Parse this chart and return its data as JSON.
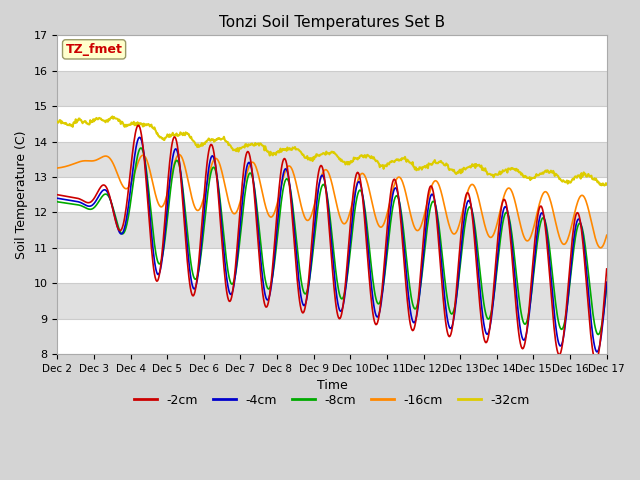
{
  "title": "Tonzi Soil Temperatures Set B",
  "xlabel": "Time",
  "ylabel": "Soil Temperature (C)",
  "ylim": [
    8.0,
    17.0
  ],
  "yticks": [
    8.0,
    9.0,
    10.0,
    11.0,
    12.0,
    13.0,
    14.0,
    15.0,
    16.0,
    17.0
  ],
  "xtick_labels": [
    "Dec 2",
    "Dec 3",
    "Dec 4",
    "Dec 5",
    "Dec 6",
    "Dec 7",
    "Dec 8",
    "Dec 9",
    "Dec 10",
    "Dec 11",
    "Dec 12",
    "Dec 13",
    "Dec 14",
    "Dec 15",
    "Dec 16",
    "Dec 17"
  ],
  "series": {
    "-2cm": {
      "color": "#cc0000",
      "lw": 1.2
    },
    "-4cm": {
      "color": "#0000cc",
      "lw": 1.2
    },
    "-8cm": {
      "color": "#00aa00",
      "lw": 1.2
    },
    "-16cm": {
      "color": "#ff8800",
      "lw": 1.2
    },
    "-32cm": {
      "color": "#ddcc00",
      "lw": 1.5
    }
  },
  "annotation_text": "TZ_fmet",
  "annotation_color": "#cc0000",
  "annotation_bg": "#ffffcc",
  "n_points": 720,
  "fig_bg": "#d4d4d4",
  "plot_bg": "#e8e8e8",
  "band_color": "#f0f0f0"
}
